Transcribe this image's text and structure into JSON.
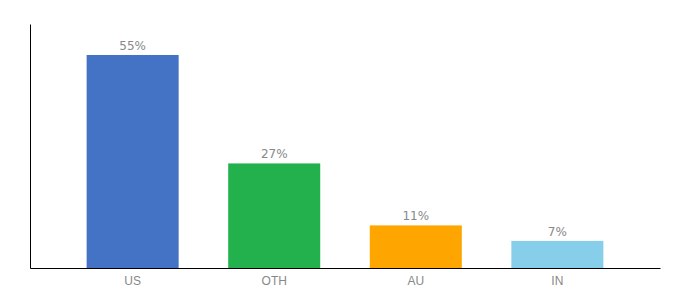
{
  "chart_data": {
    "type": "bar",
    "categories": [
      "US",
      "OTH",
      "AU",
      "IN"
    ],
    "values": [
      55,
      27,
      11,
      7
    ],
    "value_labels": [
      "55%",
      "27%",
      "11%",
      "7%"
    ],
    "colors": [
      "#4472c4",
      "#22b14c",
      "#ffa500",
      "#87ceeb"
    ],
    "ylim": [
      0,
      63
    ],
    "data_labels": true,
    "grid": false,
    "tick_labels": "x"
  }
}
